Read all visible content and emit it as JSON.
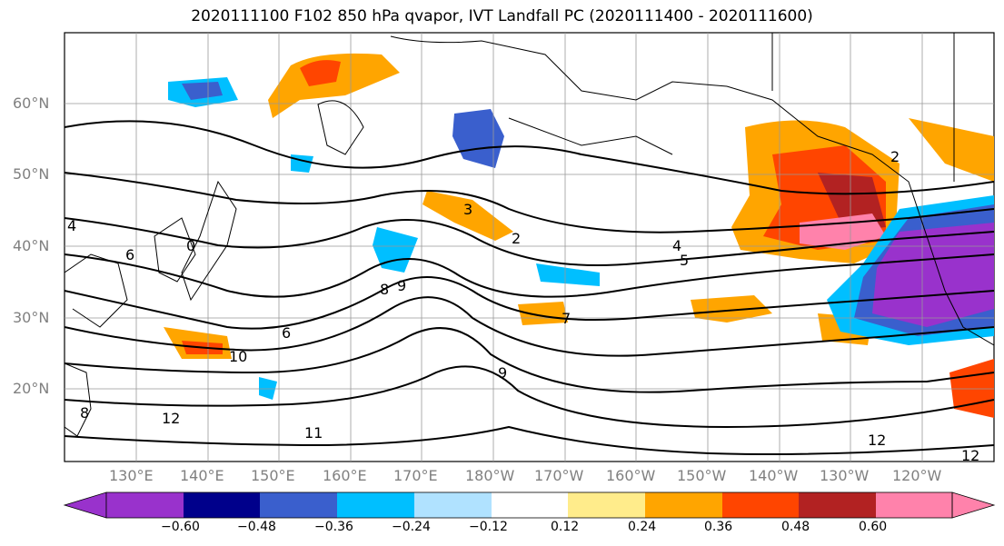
{
  "title": "2020111100 F102 850 hPa qvapor, IVT Landfall PC (2020111400 - 2020111600)",
  "lat_labels": [
    "60°N",
    "50°N",
    "40°N",
    "30°N",
    "20°N"
  ],
  "lon_labels": [
    "130°E",
    "140°E",
    "150°E",
    "160°E",
    "170°E",
    "180°W",
    "170°W",
    "160°W",
    "150°W",
    "140°W",
    "130°W",
    "120°W"
  ],
  "colorbar": {
    "ticks": [
      "−0.60",
      "−0.48",
      "−0.36",
      "−0.24",
      "−0.12",
      "0.12",
      "0.24",
      "0.36",
      "0.48",
      "0.60"
    ],
    "colors": [
      "#9932CC",
      "#00008B",
      "#3A5FCD",
      "#00BFFF",
      "#B0E2FF",
      "#FFFFFF",
      "#FFEC8B",
      "#FFA500",
      "#FF4500",
      "#B22222",
      "#FF82AB"
    ]
  },
  "contour_labels": [
    "4",
    "5",
    "9",
    "8",
    "6",
    "10",
    "11",
    "12",
    "12",
    "12",
    "2",
    "3",
    "7",
    "6",
    "8",
    "9",
    "0",
    "2",
    "4"
  ]
}
